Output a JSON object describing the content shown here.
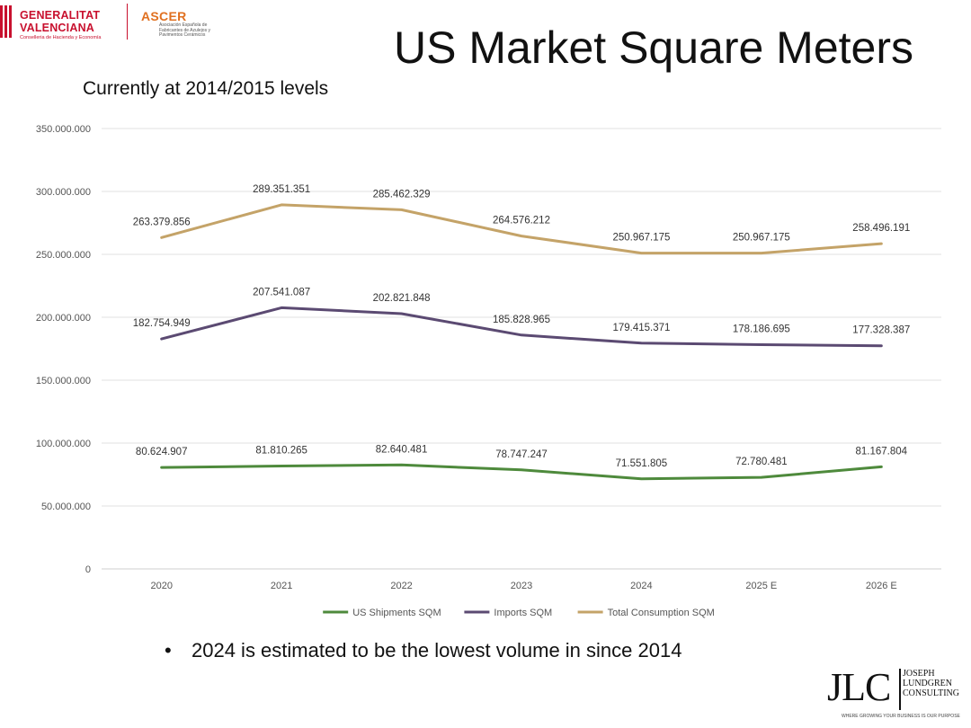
{
  "logos": {
    "gv_line1": "GENERALITAT",
    "gv_line2": "VALENCIANA",
    "gv_line3": "Conselleria de Hacienda y Economía",
    "ascer_name": "ASCER",
    "ascer_sub": "Asociación Española de Fabricantes de Azulejos y Pavimentos Cerámicos",
    "jlc_mark": "JLC",
    "jlc_name": "JOSEPH\nLUNDGREN\nCONSULTING",
    "jlc_tag": "WHERE GROWING YOUR BUSINESS IS OUR PURPOSE"
  },
  "title": "US Market Square Meters",
  "subtitle": "Currently at 2014/2015 levels",
  "bullet": {
    "symbol": "•",
    "text": "2024 is estimated to be the lowest volume in since 2014"
  },
  "chart_data": {
    "type": "line",
    "categories": [
      "2020",
      "2021",
      "2022",
      "2023",
      "2024",
      "2025 E",
      "2026 E"
    ],
    "ylim": [
      0,
      350000000
    ],
    "yticks": [
      0,
      50000000,
      100000000,
      150000000,
      200000000,
      250000000,
      300000000,
      350000000
    ],
    "ytick_labels": [
      "0",
      "50.000.000",
      "100.000.000",
      "150.000.000",
      "200.000.000",
      "250.000.000",
      "300.000.000",
      "350.000.000"
    ],
    "grid": true,
    "legend_position": "bottom",
    "series": [
      {
        "name": "US Shipments SQM",
        "color": "#4e8a3c",
        "values": [
          80624907,
          81810265,
          82640481,
          78747247,
          71551805,
          72780481,
          81167804
        ],
        "labels": [
          "80.624.907",
          "81.810.265",
          "82.640.481",
          "78.747.247",
          "71.551.805",
          "72.780.481",
          "81.167.804"
        ]
      },
      {
        "name": "Imports SQM",
        "color": "#5b4a72",
        "values": [
          182754949,
          207541087,
          202821848,
          185828965,
          179415371,
          178186695,
          177328387
        ],
        "labels": [
          "182.754.949",
          "207.541.087",
          "202.821.848",
          "185.828.965",
          "179.415.371",
          "178.186.695",
          "177.328.387"
        ]
      },
      {
        "name": "Total Consumption SQM",
        "color": "#c4a368",
        "values": [
          263379856,
          289351351,
          285462329,
          264576212,
          250967175,
          250967175,
          258496191
        ],
        "labels": [
          "263.379.856",
          "289.351.351",
          "285.462.329",
          "264.576.212",
          "250.967.175",
          "250.967.175",
          "258.496.191"
        ]
      }
    ]
  }
}
